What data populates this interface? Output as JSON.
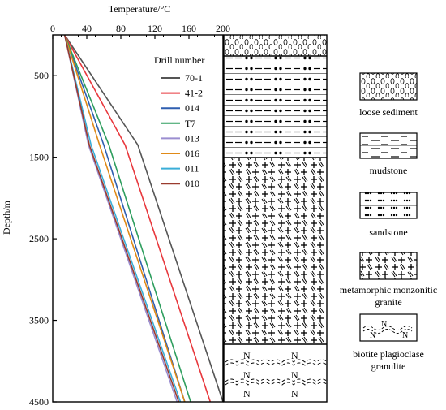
{
  "chart_data": {
    "type": "line",
    "xlabel": "Temperature/°C",
    "ylabel": "Depth/m",
    "xlim": [
      0,
      200
    ],
    "ylim": [
      0,
      4500
    ],
    "y_inverted": true,
    "x_ticks": [
      0,
      40,
      80,
      120,
      160,
      200
    ],
    "y_ticks": [
      500,
      1500,
      2500,
      3500,
      4500
    ],
    "legend_title": "Drill number",
    "legend_position": "top-right of plot",
    "series": [
      {
        "name": "70-1",
        "color": "#555555",
        "x": [
          14,
          100,
          200
        ],
        "y": [
          0,
          1350,
          4500
        ]
      },
      {
        "name": "41-2",
        "color": "#e8383d",
        "x": [
          14,
          85,
          185
        ],
        "y": [
          0,
          1350,
          4500
        ]
      },
      {
        "name": "014",
        "color": "#2f5fb0",
        "x": [
          14,
          60,
          155
        ],
        "y": [
          0,
          1350,
          4500
        ]
      },
      {
        "name": "T7",
        "color": "#2e9e5e",
        "x": [
          14,
          66,
          162
        ],
        "y": [
          0,
          1350,
          4500
        ]
      },
      {
        "name": "013",
        "color": "#9b8ed0",
        "x": [
          14,
          42,
          146
        ],
        "y": [
          0,
          1350,
          4500
        ]
      },
      {
        "name": "016",
        "color": "#e08a17",
        "x": [
          14,
          55,
          155
        ],
        "y": [
          0,
          1350,
          4500
        ]
      },
      {
        "name": "011",
        "color": "#3aaed8",
        "x": [
          14,
          45,
          150
        ],
        "y": [
          0,
          1350,
          4500
        ]
      },
      {
        "name": "010",
        "color": "#9a3b2e",
        "x": [
          14,
          43,
          148
        ],
        "y": [
          0,
          1350,
          4500
        ]
      }
    ]
  },
  "lithology": {
    "legend": [
      {
        "pattern": "loose",
        "label": "loose sediment"
      },
      {
        "pattern": "mudstone",
        "label": "mudstone"
      },
      {
        "pattern": "sandstone",
        "label": "sandstone"
      },
      {
        "pattern": "granite",
        "label": "metamorphic monzonitic granite"
      },
      {
        "pattern": "granulite",
        "label": "biotite plagioclase granulite"
      }
    ],
    "n_symbol": "N"
  }
}
